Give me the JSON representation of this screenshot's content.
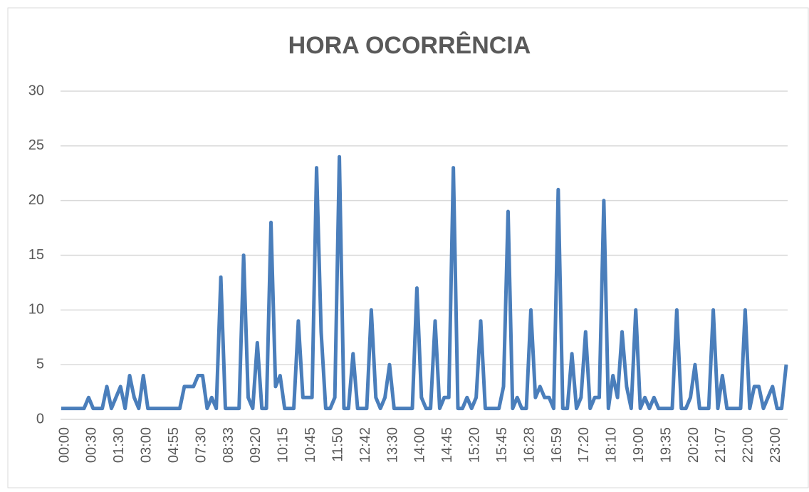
{
  "chart_data": {
    "type": "line",
    "title": "HORA OCORRÊNCIA",
    "categories": [
      "00:00",
      null,
      null,
      null,
      null,
      null,
      "00:30",
      null,
      null,
      null,
      null,
      null,
      "01:30",
      null,
      null,
      null,
      null,
      null,
      "03:00",
      null,
      null,
      null,
      null,
      null,
      "04:55",
      null,
      null,
      null,
      null,
      null,
      "07:30",
      null,
      null,
      null,
      null,
      null,
      "08:33",
      null,
      null,
      null,
      null,
      null,
      "09:20",
      null,
      null,
      null,
      null,
      null,
      "10:15",
      null,
      null,
      null,
      null,
      null,
      "10:45",
      null,
      null,
      null,
      null,
      null,
      "11:50",
      null,
      null,
      null,
      null,
      null,
      "12:42",
      null,
      null,
      null,
      null,
      null,
      "13:30",
      null,
      null,
      null,
      null,
      null,
      "14:00",
      null,
      null,
      null,
      null,
      null,
      "14:45",
      null,
      null,
      null,
      null,
      null,
      "15:20",
      null,
      null,
      null,
      null,
      null,
      "15:45",
      null,
      null,
      null,
      null,
      null,
      "16:28",
      null,
      null,
      null,
      null,
      null,
      "16:59",
      null,
      null,
      null,
      null,
      null,
      "17:20",
      null,
      null,
      null,
      null,
      null,
      "18:10",
      null,
      null,
      null,
      null,
      null,
      "19:00",
      null,
      null,
      null,
      null,
      null,
      "19:35",
      null,
      null,
      null,
      null,
      null,
      "20:20",
      null,
      null,
      null,
      null,
      null,
      "21:07",
      null,
      null,
      null,
      null,
      null,
      "22:00",
      null,
      null,
      null,
      null,
      null,
      "23:00",
      null,
      null,
      null
    ],
    "series": [
      {
        "name": "HORA OCORRÊNCIA",
        "color": "#4a7ebb",
        "values": [
          1,
          1,
          1,
          1,
          1,
          1,
          2,
          1,
          1,
          1,
          3,
          1,
          2,
          3,
          1,
          4,
          2,
          1,
          4,
          1,
          1,
          1,
          1,
          1,
          1,
          1,
          1,
          3,
          3,
          3,
          4,
          4,
          1,
          2,
          1,
          13,
          1,
          1,
          1,
          1,
          15,
          2,
          1,
          7,
          1,
          1,
          18,
          3,
          4,
          1,
          1,
          1,
          9,
          2,
          2,
          2,
          23,
          8,
          1,
          1,
          2,
          24,
          1,
          1,
          6,
          1,
          1,
          1,
          10,
          2,
          1,
          2,
          5,
          1,
          1,
          1,
          1,
          1,
          12,
          2,
          1,
          1,
          9,
          1,
          2,
          2,
          23,
          1,
          1,
          2,
          1,
          2,
          9,
          1,
          1,
          1,
          1,
          3,
          19,
          1,
          2,
          1,
          1,
          10,
          2,
          3,
          2,
          2,
          1,
          21,
          1,
          1,
          6,
          1,
          2,
          8,
          1,
          2,
          2,
          20,
          1,
          4,
          2,
          8,
          3,
          1,
          10,
          1,
          2,
          1,
          2,
          1,
          1,
          1,
          1,
          10,
          1,
          1,
          2,
          5,
          1,
          1,
          1,
          10,
          1,
          4,
          1,
          1,
          1,
          1,
          10,
          1,
          3,
          3,
          1,
          2,
          3,
          1,
          1,
          5
        ]
      }
    ],
    "ylim": [
      0,
      30
    ],
    "yticks": [
      0,
      5,
      10,
      15,
      20,
      25,
      30
    ],
    "grid": true
  }
}
